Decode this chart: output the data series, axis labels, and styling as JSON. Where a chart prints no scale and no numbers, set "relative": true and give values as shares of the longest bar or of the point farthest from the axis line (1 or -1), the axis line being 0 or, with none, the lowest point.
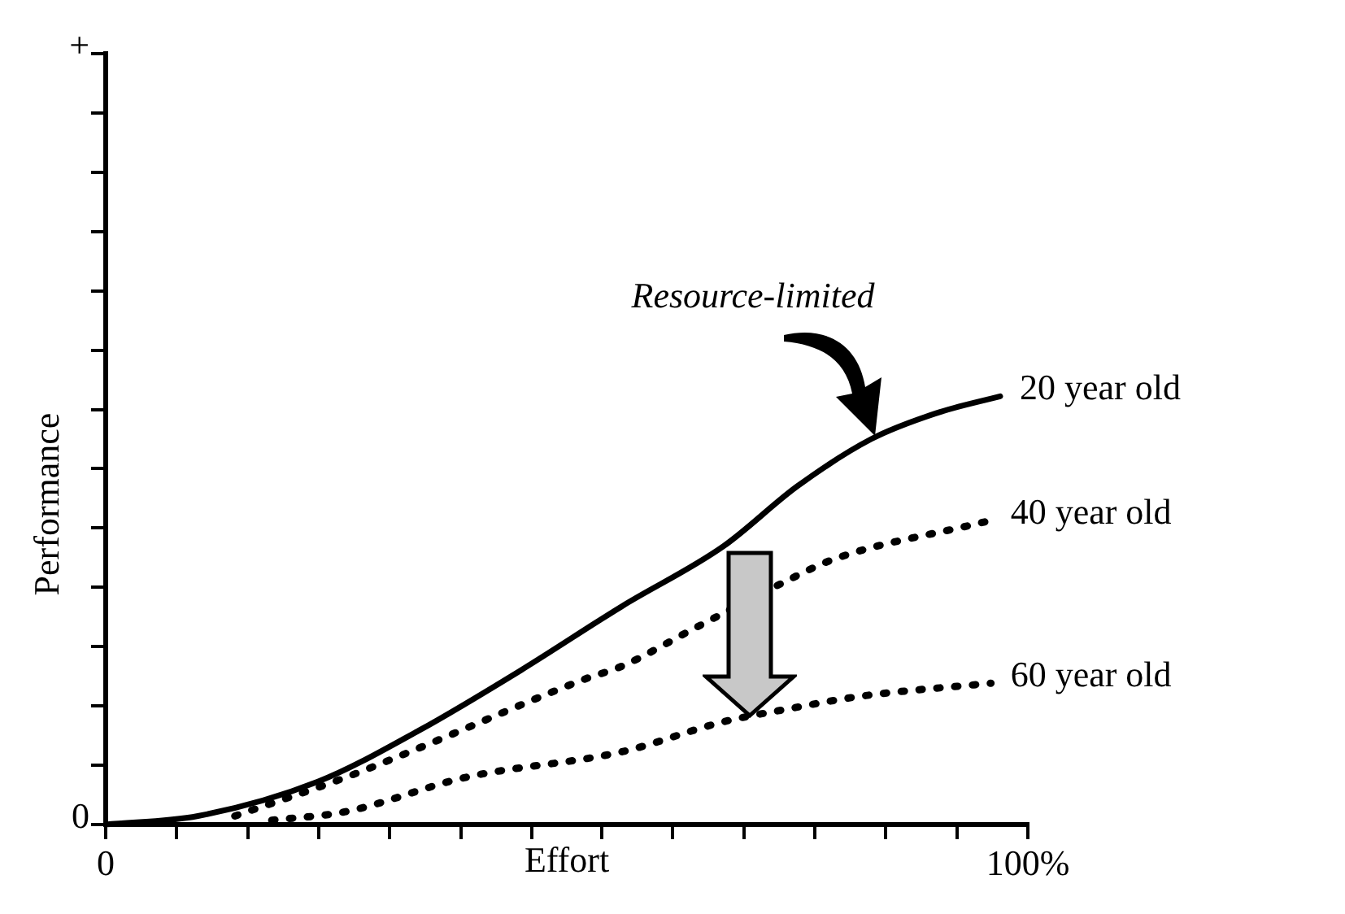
{
  "chart_data": {
    "type": "line",
    "relative": true,
    "xlabel": "Effort",
    "ylabel": "Performance",
    "xlim": [
      0,
      100
    ],
    "xticks": [
      {
        "value": 0,
        "label": "0"
      },
      {
        "value": 7.7,
        "label": null
      },
      {
        "value": 15.4,
        "label": null
      },
      {
        "value": 23.1,
        "label": null
      },
      {
        "value": 30.8,
        "label": null
      },
      {
        "value": 38.5,
        "label": null
      },
      {
        "value": 46.2,
        "label": null
      },
      {
        "value": 53.8,
        "label": null
      },
      {
        "value": 61.5,
        "label": null
      },
      {
        "value": 69.2,
        "label": null
      },
      {
        "value": 76.9,
        "label": null
      },
      {
        "value": 84.6,
        "label": null
      },
      {
        "value": 92.3,
        "label": null
      },
      {
        "value": 100,
        "label": "100%"
      }
    ],
    "tick_labels": "x",
    "grid": false,
    "legend": false,
    "marker": "none",
    "series": [
      {
        "name": "20 year old",
        "color": "#000000",
        "line_style": "solid",
        "x": [
          0,
          10,
          23,
          34,
          45,
          56,
          67,
          75,
          83,
          90,
          97
        ],
        "values": [
          0,
          0.02,
          0.1,
          0.22,
          0.36,
          0.51,
          0.65,
          0.79,
          0.9,
          0.96,
          1.0
        ]
      },
      {
        "name": "40 year old",
        "color": "#000000",
        "line_style": "dotted",
        "x": [
          14,
          26,
          33,
          52,
          56,
          64,
          73,
          79,
          94,
          96
        ],
        "values": [
          0.02,
          0.11,
          0.17,
          0.34,
          0.37,
          0.46,
          0.56,
          0.62,
          0.7,
          0.71
        ]
      },
      {
        "name": "60 year old",
        "color": "#000000",
        "line_style": "dotted",
        "x": [
          18,
          26,
          39,
          56,
          67,
          74,
          82,
          96
        ],
        "values": [
          0.01,
          0.03,
          0.11,
          0.17,
          0.24,
          0.27,
          0.3,
          0.33
        ]
      }
    ],
    "annotations": [
      "0",
      "+",
      "Resource-limited"
    ]
  }
}
